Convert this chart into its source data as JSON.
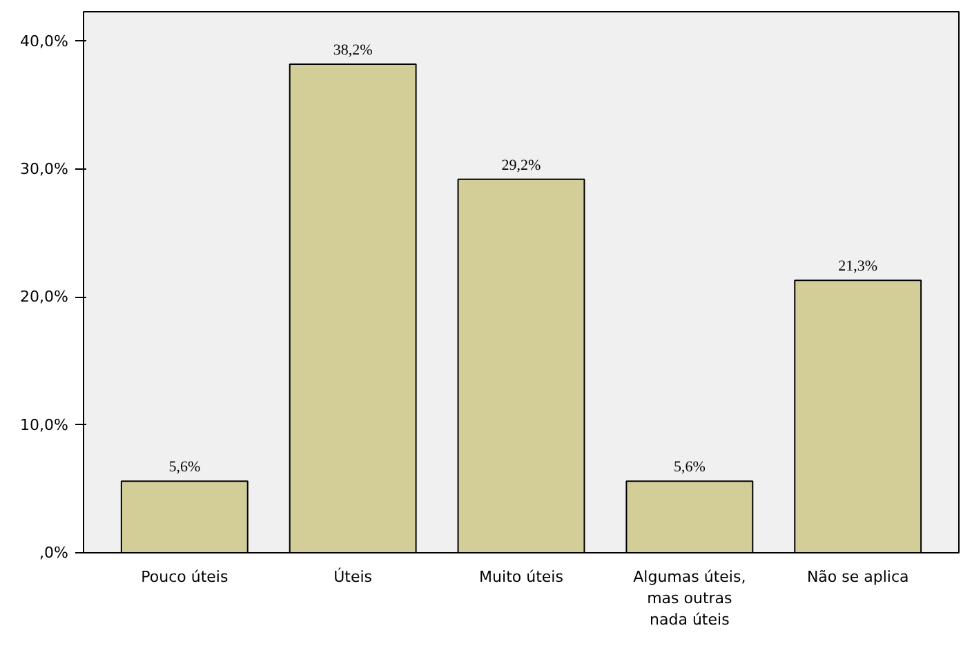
{
  "chart_data": {
    "type": "bar",
    "categories": [
      "Pouco úteis",
      "Úteis",
      "Muito úteis",
      "Algumas úteis,\nmas outras\nnada úteis",
      "Não se aplica"
    ],
    "values": [
      5.6,
      38.2,
      29.2,
      5.6,
      21.3
    ],
    "value_labels": [
      "5,6%",
      "38,2%",
      "29,2%",
      "5,6%",
      "21,3%"
    ],
    "color": "#d3ce98",
    "ylim": [
      0,
      42.3
    ],
    "yticks": [
      {
        "value": 0,
        "label": ",0%"
      },
      {
        "value": 10,
        "label": "10,0%"
      },
      {
        "value": 20,
        "label": "20,0%"
      },
      {
        "value": 30,
        "label": "30,0%"
      },
      {
        "value": 40,
        "label": "40,0%"
      }
    ],
    "grid": false
  }
}
